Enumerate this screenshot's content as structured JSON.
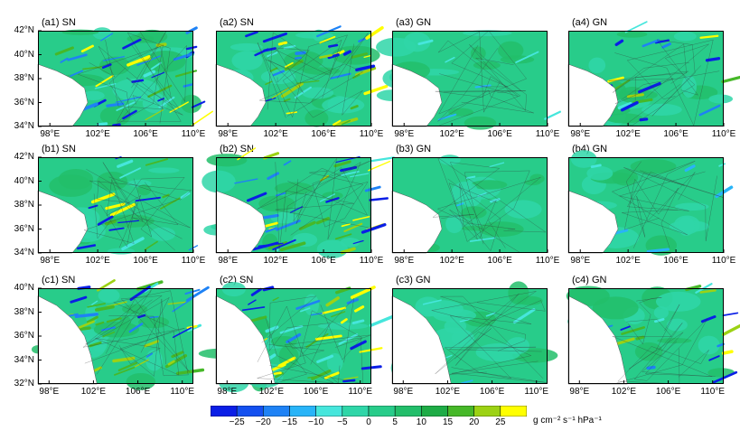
{
  "chart_data": {
    "type": "heatmap",
    "layout": "3 rows x 4 columns of map panels",
    "panels": [
      {
        "title": "(a1)  SN",
        "row": "a",
        "col": 1,
        "dataset": "SN",
        "xlim": [
          97,
          110
        ],
        "ylim": [
          34,
          42
        ],
        "yticks": [
          "34°N",
          "36°N",
          "38°N",
          "40°N",
          "42°N"
        ],
        "xticks": [
          "98°E",
          "102°E",
          "106°E",
          "110°E"
        ],
        "activity": "high"
      },
      {
        "title": "(a2)  SN",
        "row": "a",
        "col": 2,
        "dataset": "SN",
        "xlim": [
          97,
          110
        ],
        "ylim": [
          34,
          42
        ],
        "xticks": [
          "98°E",
          "102°E",
          "106°E",
          "110°E"
        ],
        "activity": "high"
      },
      {
        "title": "(a3)  GN",
        "row": "a",
        "col": 3,
        "dataset": "GN",
        "xlim": [
          97,
          110
        ],
        "ylim": [
          34,
          42
        ],
        "xticks": [
          "98°E",
          "102°E",
          "106°E",
          "110°E"
        ],
        "activity": "low"
      },
      {
        "title": "(a4)  GN",
        "row": "a",
        "col": 4,
        "dataset": "GN",
        "xlim": [
          97,
          110
        ],
        "ylim": [
          34,
          42
        ],
        "xticks": [
          "98°E",
          "102°E",
          "106°E",
          "110°E"
        ],
        "activity": "medium"
      },
      {
        "title": "(b1)  SN",
        "row": "b",
        "col": 1,
        "dataset": "SN",
        "xlim": [
          97,
          110
        ],
        "ylim": [
          34,
          42
        ],
        "yticks": [
          "34°N",
          "36°N",
          "38°N",
          "40°N",
          "42°N"
        ],
        "xticks": [
          "98°E",
          "102°E",
          "106°E",
          "110°E"
        ],
        "activity": "medium"
      },
      {
        "title": "(b2)  SN",
        "row": "b",
        "col": 2,
        "dataset": "SN",
        "xlim": [
          97,
          110
        ],
        "ylim": [
          34,
          42
        ],
        "xticks": [
          "98°E",
          "102°E",
          "106°E",
          "110°E"
        ],
        "activity": "high"
      },
      {
        "title": "(b3)  GN",
        "row": "b",
        "col": 3,
        "dataset": "GN",
        "xlim": [
          97,
          110
        ],
        "ylim": [
          34,
          42
        ],
        "xticks": [
          "98°E",
          "102°E",
          "106°E",
          "110°E"
        ],
        "activity": "low"
      },
      {
        "title": "(b4)  GN",
        "row": "b",
        "col": 4,
        "dataset": "GN",
        "xlim": [
          97,
          110
        ],
        "ylim": [
          34,
          42
        ],
        "xticks": [
          "98°E",
          "102°E",
          "106°E",
          "110°E"
        ],
        "activity": "low"
      },
      {
        "title": "(c1)  SN",
        "row": "c",
        "col": 1,
        "dataset": "SN",
        "xlim": [
          97,
          111
        ],
        "ylim": [
          32,
          40
        ],
        "yticks": [
          "32°N",
          "34°N",
          "36°N",
          "38°N",
          "40°N"
        ],
        "xticks": [
          "98°E",
          "102°E",
          "106°E",
          "110°E"
        ],
        "activity": "high"
      },
      {
        "title": "(c2)  SN",
        "row": "c",
        "col": 2,
        "dataset": "SN",
        "xlim": [
          97,
          111
        ],
        "ylim": [
          32,
          40
        ],
        "xticks": [
          "98°E",
          "102°E",
          "106°E",
          "110°E"
        ],
        "activity": "high"
      },
      {
        "title": "(c3)  GN",
        "row": "c",
        "col": 3,
        "dataset": "GN",
        "xlim": [
          97,
          111
        ],
        "ylim": [
          32,
          40
        ],
        "xticks": [
          "98°E",
          "102°E",
          "106°E",
          "110°E"
        ],
        "activity": "low"
      },
      {
        "title": "(c4)  GN",
        "row": "c",
        "col": 4,
        "dataset": "GN",
        "xlim": [
          97,
          111
        ],
        "ylim": [
          32,
          40
        ],
        "xticks": [
          "98°E",
          "102°E",
          "106°E",
          "110°E"
        ],
        "activity": "medium"
      }
    ],
    "colorbar": {
      "levels": [
        -30,
        -25,
        -20,
        -15,
        -10,
        -5,
        0,
        5,
        10,
        15,
        20,
        25,
        30
      ],
      "tick_labels": [
        "−25",
        "−20",
        "−15",
        "−10",
        "−5",
        "0",
        "5",
        "10",
        "15",
        "20",
        "25"
      ],
      "colors": [
        "#0a1ee6",
        "#1450f0",
        "#1e82f5",
        "#28b4f8",
        "#46e6dc",
        "#2fd6a8",
        "#28cc8a",
        "#22be6a",
        "#1eac46",
        "#46b828",
        "#9cd214",
        "#ffff00"
      ],
      "unit": "g cm⁻² s⁻¹ hPa⁻¹"
    },
    "background_color": "#28cc8a",
    "masked_color": "#ffffff"
  }
}
